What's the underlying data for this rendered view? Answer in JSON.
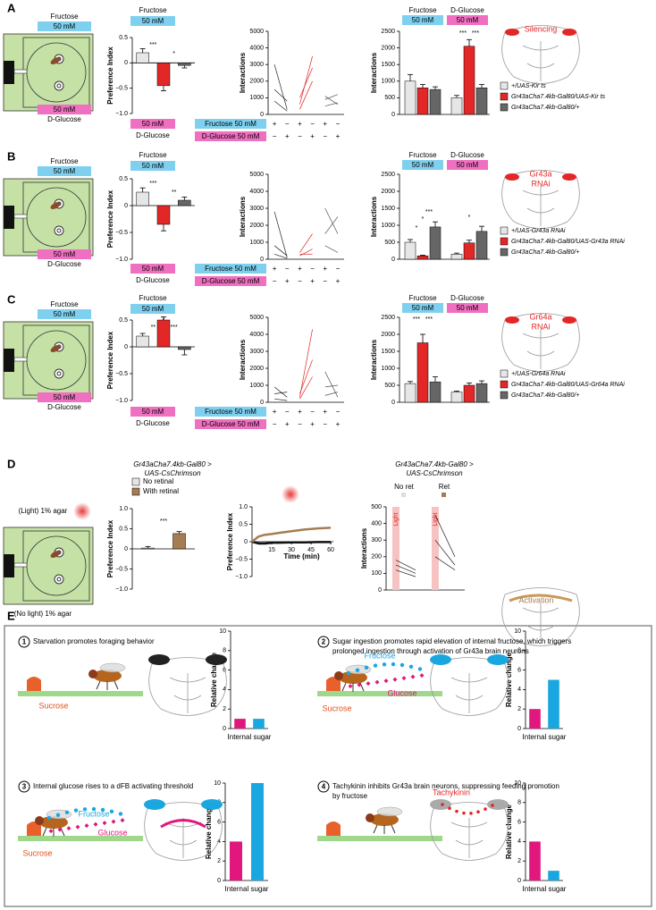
{
  "chart_data": [
    {
      "type": "bar",
      "ylabel": "Preference Index",
      "ylim": [
        -1,
        0.5
      ],
      "yticks": [
        {
          "value": -1,
          "label": "−1.0"
        },
        {
          "value": -0.5,
          "label": "−0.5"
        },
        0,
        0.5
      ],
      "values": [
        0.2,
        -0.45,
        -0.05
      ],
      "errors": [
        0.08,
        0.1,
        0.05
      ],
      "colors": [
        "#e6e6e6",
        "#e32626",
        "#666666"
      ],
      "annotations": [
        "***",
        "*"
      ]
    },
    {
      "type": "paired",
      "ylabel": "Interactions",
      "ylim": [
        0,
        5000
      ],
      "yticks": [
        0,
        1000,
        2000,
        3000,
        4000,
        5000
      ],
      "series": [
        {
          "color": "#222222",
          "values": [
            3000,
            300,
            null,
            null,
            null,
            null
          ]
        },
        {
          "color": "#222222",
          "values": [
            1500,
            800,
            null,
            null,
            null,
            null
          ]
        },
        {
          "color": "#222222",
          "values": [
            800,
            200,
            null,
            null,
            null,
            null
          ]
        },
        {
          "color": "#e32626",
          "values": [
            null,
            null,
            600,
            3500,
            null,
            null
          ]
        },
        {
          "color": "#e32626",
          "values": [
            null,
            null,
            300,
            2000,
            null,
            null
          ]
        },
        {
          "color": "#e32626",
          "values": [
            null,
            null,
            1000,
            2800,
            null,
            null
          ]
        },
        {
          "color": "#555555",
          "values": [
            null,
            null,
            null,
            null,
            900,
            1200
          ]
        },
        {
          "color": "#555555",
          "values": [
            null,
            null,
            null,
            null,
            500,
            700
          ]
        },
        {
          "color": "#555555",
          "values": [
            null,
            null,
            null,
            null,
            1100,
            600
          ]
        }
      ]
    },
    {
      "type": "bar",
      "ylabel": "Interactions",
      "ylim": [
        0,
        2500
      ],
      "yticks": [
        0,
        500,
        1000,
        1500,
        2000,
        2500
      ],
      "values": [
        1000,
        800,
        750,
        500,
        2050,
        800
      ],
      "errors": [
        200,
        100,
        80,
        70,
        200,
        100
      ],
      "colors": [
        "#e6e6e6",
        "#e32626",
        "#666666",
        "#e6e6e6",
        "#e32626",
        "#666666"
      ],
      "annotations": [
        "***",
        "***"
      ]
    },
    {
      "type": "bar",
      "ylabel": "Preference Index",
      "ylim": [
        -1,
        0.5
      ],
      "yticks": [
        {
          "value": -1,
          "label": "−1.0"
        },
        {
          "value": -0.5,
          "label": "−0.5"
        },
        0,
        0.5
      ],
      "values": [
        0.25,
        -0.35,
        0.1
      ],
      "errors": [
        0.08,
        0.12,
        0.06
      ],
      "colors": [
        "#e6e6e6",
        "#e32626",
        "#666666"
      ],
      "annotations": [
        "***",
        "**"
      ]
    },
    {
      "type": "paired",
      "ylabel": "Interactions",
      "ylim": [
        0,
        5000
      ],
      "yticks": [
        0,
        1000,
        2000,
        3000,
        4000,
        5000
      ],
      "series": [
        {
          "color": "#222222",
          "values": [
            2800,
            100,
            null,
            null,
            null,
            null
          ]
        },
        {
          "color": "#222222",
          "values": [
            800,
            200,
            null,
            null,
            null,
            null
          ]
        },
        {
          "color": "#222222",
          "values": [
            300,
            50,
            null,
            null,
            null,
            null
          ]
        },
        {
          "color": "#e32626",
          "values": [
            null,
            null,
            400,
            1500,
            null,
            null
          ]
        },
        {
          "color": "#e32626",
          "values": [
            null,
            null,
            200,
            600,
            null,
            null
          ]
        },
        {
          "color": "#e32626",
          "values": [
            null,
            null,
            300,
            300,
            null,
            null
          ]
        },
        {
          "color": "#555555",
          "values": [
            null,
            null,
            null,
            null,
            3000,
            1500
          ]
        },
        {
          "color": "#555555",
          "values": [
            null,
            null,
            null,
            null,
            1500,
            2500
          ]
        },
        {
          "color": "#555555",
          "values": [
            null,
            null,
            null,
            null,
            800,
            400
          ]
        }
      ]
    },
    {
      "type": "bar",
      "ylabel": "Interactions",
      "ylim": [
        0,
        2500
      ],
      "yticks": [
        0,
        500,
        1000,
        1500,
        2000,
        2500
      ],
      "values": [
        500,
        100,
        950,
        150,
        480,
        820
      ],
      "errors": [
        80,
        20,
        150,
        30,
        80,
        150
      ],
      "colors": [
        "#e6e6e6",
        "#e32626",
        "#666666",
        "#e6e6e6",
        "#e32626",
        "#666666"
      ],
      "annotations": [
        "*",
        "*",
        "***",
        "*"
      ]
    },
    {
      "type": "bar",
      "ylabel": "Preference Index",
      "ylim": [
        -1,
        0.5
      ],
      "yticks": [
        {
          "value": -1,
          "label": "−1.0"
        },
        {
          "value": -0.5,
          "label": "−0.5"
        },
        0,
        0.5
      ],
      "values": [
        0.2,
        0.5,
        -0.05
      ],
      "errors": [
        0.05,
        0.06,
        0.1
      ],
      "colors": [
        "#e6e6e6",
        "#e32626",
        "#666666"
      ],
      "annotations": [
        "*",
        "**",
        "***"
      ]
    },
    {
      "type": "paired",
      "ylabel": "Interactions",
      "ylim": [
        0,
        5000
      ],
      "yticks": [
        0,
        1000,
        2000,
        3000,
        4000,
        5000
      ],
      "series": [
        {
          "color": "#222222",
          "values": [
            900,
            300,
            null,
            null,
            null,
            null
          ]
        },
        {
          "color": "#222222",
          "values": [
            500,
            600,
            null,
            null,
            null,
            null
          ]
        },
        {
          "color": "#222222",
          "values": [
            200,
            100,
            null,
            null,
            null,
            null
          ]
        },
        {
          "color": "#e32626",
          "values": [
            null,
            null,
            300,
            4300,
            null,
            null
          ]
        },
        {
          "color": "#e32626",
          "values": [
            null,
            null,
            500,
            2500,
            null,
            null
          ]
        },
        {
          "color": "#e32626",
          "values": [
            null,
            null,
            200,
            1500,
            null,
            null
          ]
        },
        {
          "color": "#555555",
          "values": [
            null,
            null,
            null,
            null,
            1800,
            300
          ]
        },
        {
          "color": "#555555",
          "values": [
            null,
            null,
            null,
            null,
            900,
            1000
          ]
        },
        {
          "color": "#555555",
          "values": [
            null,
            null,
            null,
            null,
            400,
            600
          ]
        }
      ]
    },
    {
      "type": "bar",
      "ylabel": "Interactions",
      "ylim": [
        0,
        2500
      ],
      "yticks": [
        0,
        500,
        1000,
        1500,
        2000,
        2500
      ],
      "values": [
        550,
        1750,
        600,
        300,
        500,
        550
      ],
      "errors": [
        60,
        250,
        150,
        30,
        70,
        80
      ],
      "colors": [
        "#e6e6e6",
        "#e32626",
        "#666666",
        "#e6e6e6",
        "#e32626",
        "#666666"
      ],
      "annotations": [
        "***",
        "***"
      ]
    },
    {
      "type": "bar",
      "title": [
        "Gr43aCha7.4kb-Gal80 >",
        "UAS-CsChrimson"
      ],
      "legend_entries": [
        "No retinal",
        "With retinal"
      ],
      "ylabel": "Preference Index",
      "ylim": [
        -1,
        1
      ],
      "yticks": [
        {
          "value": -1,
          "label": "−1.0"
        },
        {
          "value": -0.5,
          "label": "−0.5"
        },
        0,
        0.5,
        {
          "value": 1,
          "label": "1.0"
        }
      ],
      "values": [
        0.02,
        0.38
      ],
      "errors": [
        0.04,
        0.05
      ],
      "colors": [
        "#e6e6e6",
        "#a67c52"
      ],
      "annotations": [
        "***"
      ]
    },
    {
      "type": "line",
      "ylabel": "Preference Index",
      "xlabel": "Time (min)",
      "xlim": [
        0,
        62
      ],
      "xticks": [
        15,
        30,
        45,
        60
      ],
      "ylim": [
        -1,
        1
      ],
      "yticks": [
        {
          "value": -1,
          "label": "−1.0"
        },
        {
          "value": -0.5,
          "label": "−0.5"
        },
        0,
        0.5,
        {
          "value": 1,
          "label": "1.0"
        }
      ],
      "x": [
        0,
        5,
        10,
        15,
        20,
        30,
        40,
        50,
        60
      ],
      "series": [
        {
          "color": "#111111",
          "values": [
            0,
            -0.05,
            -0.05,
            -0.03,
            -0.03,
            -0.02,
            -0.02,
            -0.01,
            -0.01
          ]
        },
        {
          "color": "#a67c52",
          "values": [
            0,
            0.15,
            0.2,
            0.22,
            0.25,
            0.3,
            0.35,
            0.38,
            0.4
          ]
        }
      ]
    },
    {
      "type": "paired",
      "title": [
        "Gr43aCha7.4kb-Gal80 >",
        "UAS-CsChrimson"
      ],
      "ylabel": "Interactions",
      "ylim": [
        0,
        500
      ],
      "yticks": [
        0,
        100,
        200,
        300,
        400,
        500
      ],
      "series": [
        {
          "color": "#222222",
          "values": [
            180,
            120,
            null,
            null
          ]
        },
        {
          "color": "#222222",
          "values": [
            120,
            80,
            null,
            null
          ]
        },
        {
          "color": "#222222",
          "values": [
            150,
            100,
            null,
            null
          ]
        },
        {
          "color": "#222222",
          "values": [
            null,
            null,
            450,
            200
          ]
        },
        {
          "color": "#222222",
          "values": [
            null,
            null,
            300,
            150
          ]
        },
        {
          "color": "#222222",
          "values": [
            null,
            null,
            200,
            120
          ]
        }
      ]
    },
    {
      "type": "bar",
      "ylabel": "Relative change",
      "xlabel": "Internal sugar",
      "ylim": [
        0,
        10
      ],
      "yticks": [
        0,
        2,
        4,
        6,
        8,
        10
      ],
      "values": [
        1,
        1
      ],
      "colors": [
        "#e0177d",
        "#1aa7e0"
      ]
    },
    {
      "type": "bar",
      "ylabel": "Relative change",
      "xlabel": "Internal sugar",
      "ylim": [
        0,
        10
      ],
      "yticks": [
        0,
        2,
        4,
        6,
        8,
        10
      ],
      "values": [
        2,
        5
      ],
      "colors": [
        "#e0177d",
        "#1aa7e0"
      ]
    },
    {
      "type": "bar",
      "ylabel": "Relative change",
      "xlabel": "Internal sugar",
      "ylim": [
        0,
        10
      ],
      "yticks": [
        0,
        2,
        4,
        6,
        8,
        10
      ],
      "values": [
        4,
        10
      ],
      "colors": [
        "#e0177d",
        "#1aa7e0"
      ]
    },
    {
      "type": "bar",
      "ylabel": "Relative change",
      "xlabel": "Internal sugar",
      "ylim": [
        0,
        10
      ],
      "yticks": [
        0,
        2,
        4,
        6,
        8,
        10
      ],
      "values": [
        4,
        1
      ],
      "colors": [
        "#e0177d",
        "#1aa7e0"
      ]
    }
  ],
  "panels": {
    "letters": [
      "A",
      "B",
      "C",
      "D",
      "E"
    ],
    "rows": [
      {
        "arena_head": "Fructose",
        "arena_top_conc": "50 mM",
        "arena_bottom_conc": "50 mM",
        "arena_foot": "D-Glucose",
        "pi_head": "Fructose",
        "pi_top_conc": "50 mM",
        "pi_bottom_conc": "50 mM",
        "pi_foot": "D-Glucose",
        "table_rows": [
          "Fructose 50 mM",
          "D-Glucose 50 mM"
        ],
        "signs": [
          [
            "+",
            "−",
            "+",
            "−",
            "+",
            "−"
          ],
          [
            "−",
            "+",
            "−",
            "+",
            "−",
            "+"
          ]
        ],
        "bar_heads": [
          "Fructose",
          "D-Glucose"
        ],
        "bar_concs": [
          "50 mM",
          "50 mM"
        ],
        "brain_label": [
          "Silencing"
        ],
        "legend": [
          "+/UAS-Kir ts",
          "Gr43aCha7.4kb-Gal80/UAS-Kir ts",
          "Gr43aCha7.4kb-Gal80/+"
        ]
      },
      {
        "arena_head": "Fructose",
        "arena_top_conc": "50 mM",
        "arena_bottom_conc": "50 mM",
        "arena_foot": "D-Glucose",
        "pi_head": "Fructose",
        "pi_top_conc": "50 mM",
        "pi_bottom_conc": "50 mM",
        "pi_foot": "D-Glucose",
        "table_rows": [
          "Fructose 50 mM",
          "D-Glucose 50 mM"
        ],
        "signs": [
          [
            "+",
            "−",
            "+",
            "−",
            "+",
            "−"
          ],
          [
            "−",
            "+",
            "−",
            "+",
            "−",
            "+"
          ]
        ],
        "bar_heads": [
          "Fructose",
          "D-Glucose"
        ],
        "bar_concs": [
          "50 mM",
          "50 mM"
        ],
        "brain_label": [
          "Gr43a",
          "RNAi"
        ],
        "legend": [
          "+/UAS-Gr43a RNAi",
          "Gr43aCha7.4kb-Gal80/UAS-Gr43a RNAi",
          "Gr43aCha7.4kb-Gal80/+"
        ]
      },
      {
        "arena_head": "Fructose",
        "arena_top_conc": "50 mM",
        "arena_bottom_conc": "50 mM",
        "arena_foot": "D-Glucose",
        "pi_head": "Fructose",
        "pi_top_conc": "50 mM",
        "pi_bottom_conc": "50 mM",
        "pi_foot": "D-Glucose",
        "table_rows": [
          "Fructose 50 mM",
          "D-Glucose 50 mM"
        ],
        "signs": [
          [
            "+",
            "−",
            "+",
            "−",
            "+",
            "−"
          ],
          [
            "−",
            "+",
            "−",
            "+",
            "−",
            "+"
          ]
        ],
        "bar_heads": [
          "Fructose",
          "D-Glucose"
        ],
        "bar_concs": [
          "50 mM",
          "50 mM"
        ],
        "brain_label": [
          "Gr64a",
          "RNAi"
        ],
        "legend": [
          "+/UAS-Gr64a RNAi",
          "Gr43aCha7.4kb-Gal80/UAS-Gr64a RNAi",
          "Gr43aCha7.4kb-Gal80/+"
        ]
      }
    ],
    "D": {
      "arena_top": "(Light) 1% agar",
      "arena_bottom": "(No light) 1% agar",
      "groups": [
        "No ret",
        "Ret"
      ],
      "light": [
        "Light",
        "Light"
      ],
      "brain_label": "Activation"
    },
    "E": [
      {
        "num": "1",
        "text": [
          "Starvation promotes foraging behavior"
        ],
        "labels": [
          "Sucrose"
        ]
      },
      {
        "num": "2",
        "text": [
          "Sugar ingestion promotes rapid elevation of internal fructose, which triggers",
          "prolonged ingestion through activation of Gr43a brain neurons"
        ],
        "labels": [
          "Fructose",
          "Glucose",
          "Sucrose"
        ]
      },
      {
        "num": "3",
        "text": [
          "Internal glucose rises to a dFB activating threshold"
        ],
        "labels": [
          "Fructose",
          "Glucose",
          "Sucrose"
        ]
      },
      {
        "num": "4",
        "text": [
          "Tachykinin inhibits Gr43a brain neurons, suppressing feeding promotion",
          " by fructose"
        ],
        "labels": [
          "Tachykinin"
        ]
      }
    ]
  }
}
